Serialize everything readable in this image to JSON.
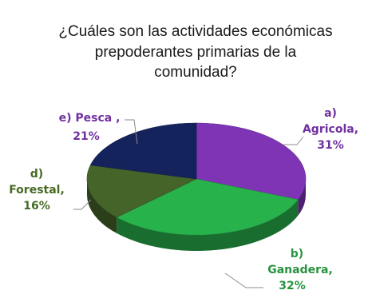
{
  "chart_data": {
    "type": "pie",
    "title": [
      "¿Cuáles son las actividades económicas",
      "prepoderantes primarias de la",
      "comunidad?"
    ],
    "slices": [
      {
        "key": "agricola",
        "label_lines": [
          "a)",
          "Agricola,",
          "31%"
        ],
        "value": 31,
        "color": "#7e34b4",
        "label_color": "#7030a0"
      },
      {
        "key": "ganadera",
        "label_lines": [
          "b)",
          "Ganadera,",
          "32%"
        ],
        "value": 32,
        "color": "#28b24c",
        "label_color": "#27933e"
      },
      {
        "key": "forestal",
        "label_lines": [
          "d)",
          "Forestal,",
          "16%"
        ],
        "value": 16,
        "color": "#45642a",
        "label_color": "#466a22"
      },
      {
        "key": "pesca",
        "label_lines": [
          "e) Pesca ,",
          "21%"
        ],
        "value": 21,
        "color": "#15235c",
        "label_color": "#7030a0"
      }
    ],
    "style": "3d-pie",
    "legend": "none"
  }
}
